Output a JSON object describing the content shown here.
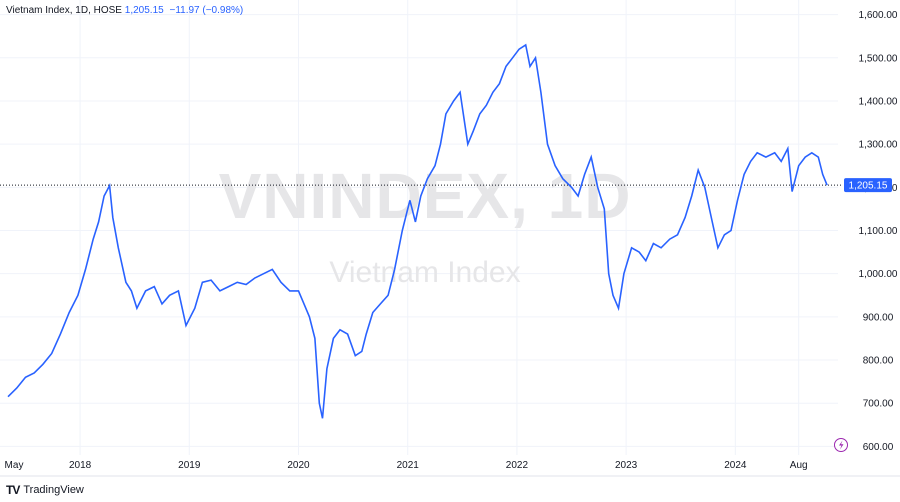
{
  "legend": {
    "symbol": "Vietnam Index, 1D, HOSE",
    "last": "1,205.15",
    "change": "−11.97 (−0.98%)"
  },
  "watermark": {
    "ticker": "VNINDEX, 1D",
    "name": "Vietnam Index"
  },
  "brand": {
    "logo": "TV",
    "name": "TradingView"
  },
  "last_price_label": "1,205.15",
  "colors": {
    "line": "#2962ff",
    "tag": "#2962ff",
    "axis_text": "#131722",
    "grid": "#f0f3fa"
  },
  "chart_data": {
    "type": "line",
    "x_tick_labels": [
      "May",
      "2018",
      "2019",
      "2020",
      "2021",
      "2022",
      "2023",
      "2024",
      "Aug"
    ],
    "x_tick_dates": [
      2017.34,
      2018.0,
      2019.0,
      2020.0,
      2021.0,
      2022.0,
      2023.0,
      2024.0,
      2024.58
    ],
    "y_tick_labels": [
      "600.00",
      "700.00",
      "800.00",
      "900.00",
      "1,000.00",
      "1,100.00",
      "1,200.00",
      "1,300.00",
      "1,400.00",
      "1,500.00",
      "1,600.00"
    ],
    "y_ticks": [
      600,
      700,
      800,
      900,
      1000,
      1100,
      1200,
      1300,
      1400,
      1500,
      1600
    ],
    "ylim": [
      580,
      1620
    ],
    "xlim": [
      2017.34,
      2024.94
    ],
    "last_value": 1205.15,
    "series": [
      {
        "x": [
          2017.34,
          2017.42,
          2017.5,
          2017.58,
          2017.66,
          2017.74,
          2017.82,
          2017.9,
          2017.98,
          2018.05,
          2018.12,
          2018.17,
          2018.22,
          2018.27,
          2018.3,
          2018.35,
          2018.42,
          2018.47,
          2018.52,
          2018.6,
          2018.68,
          2018.75,
          2018.82,
          2018.9,
          2018.97,
          2019.05,
          2019.12,
          2019.2,
          2019.28,
          2019.36,
          2019.44,
          2019.52,
          2019.6,
          2019.68,
          2019.76,
          2019.84,
          2019.92,
          2020.0,
          2020.05,
          2020.1,
          2020.15,
          2020.19,
          2020.22,
          2020.26,
          2020.32,
          2020.38,
          2020.45,
          2020.52,
          2020.58,
          2020.62,
          2020.68,
          2020.75,
          2020.82,
          2020.88,
          2020.95,
          2021.02,
          2021.07,
          2021.12,
          2021.18,
          2021.25,
          2021.3,
          2021.35,
          2021.42,
          2021.48,
          2021.55,
          2021.6,
          2021.66,
          2021.72,
          2021.78,
          2021.84,
          2021.9,
          2021.96,
          2022.02,
          2022.08,
          2022.12,
          2022.17,
          2022.22,
          2022.28,
          2022.35,
          2022.42,
          2022.5,
          2022.56,
          2022.62,
          2022.68,
          2022.74,
          2022.8,
          2022.84,
          2022.88,
          2022.93,
          2022.98,
          2023.05,
          2023.12,
          2023.18,
          2023.25,
          2023.32,
          2023.4,
          2023.47,
          2023.54,
          2023.6,
          2023.66,
          2023.72,
          2023.78,
          2023.84,
          2023.9,
          2023.96,
          2024.02,
          2024.08,
          2024.14,
          2024.2,
          2024.28,
          2024.36,
          2024.42,
          2024.48,
          2024.52,
          2024.58,
          2024.64,
          2024.7,
          2024.76,
          2024.8,
          2024.84
        ],
        "values": [
          715,
          735,
          760,
          770,
          790,
          815,
          860,
          910,
          950,
          1010,
          1080,
          1120,
          1180,
          1204,
          1130,
          1060,
          980,
          960,
          920,
          960,
          970,
          930,
          950,
          960,
          880,
          920,
          980,
          985,
          960,
          970,
          980,
          975,
          990,
          1000,
          1010,
          980,
          960,
          960,
          930,
          900,
          850,
          700,
          665,
          780,
          850,
          870,
          860,
          810,
          820,
          860,
          910,
          930,
          950,
          1010,
          1100,
          1170,
          1120,
          1180,
          1220,
          1250,
          1300,
          1370,
          1400,
          1420,
          1300,
          1330,
          1370,
          1390,
          1420,
          1440,
          1480,
          1500,
          1520,
          1530,
          1480,
          1500,
          1420,
          1300,
          1250,
          1220,
          1200,
          1180,
          1230,
          1270,
          1200,
          1150,
          1000,
          950,
          920,
          1000,
          1060,
          1050,
          1030,
          1070,
          1060,
          1080,
          1090,
          1130,
          1180,
          1240,
          1200,
          1130,
          1060,
          1090,
          1100,
          1170,
          1230,
          1260,
          1280,
          1270,
          1280,
          1260,
          1290,
          1190,
          1250,
          1270,
          1280,
          1270,
          1230,
          1205
        ]
      }
    ]
  }
}
